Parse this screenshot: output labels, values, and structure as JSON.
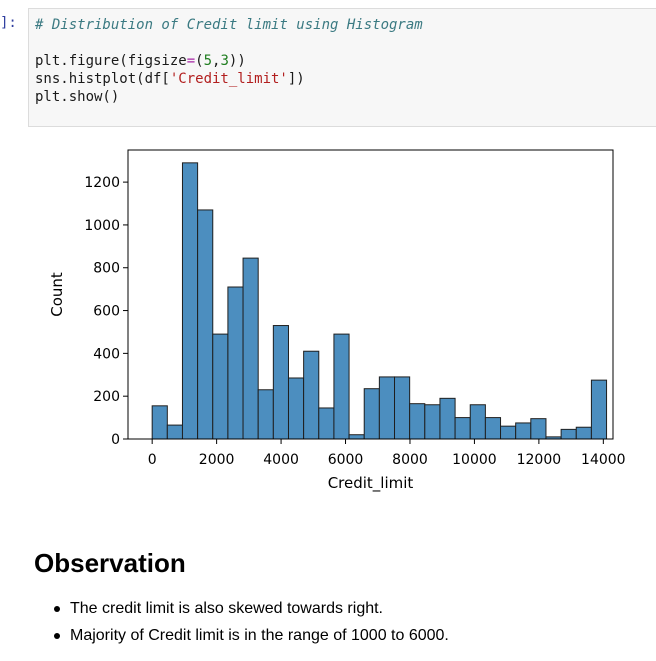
{
  "cell": {
    "prompt": "]:",
    "comment": "# Distribution of Credit limit using Histogram",
    "line1": {
      "pre": "plt.figure(figsize",
      "op": "=",
      "paren_open": "(",
      "num1": "5",
      "comma": ",",
      "num2": "3",
      "post": "))"
    },
    "line2": {
      "pre": "sns.histplot(df[",
      "str": "'Credit_limit'",
      "post": "])"
    },
    "line3": "plt.show()"
  },
  "chart_data": {
    "type": "bar",
    "title": "",
    "xlabel": "Credit_limit",
    "ylabel": "Count",
    "xlim": [
      -750,
      14300
    ],
    "ylim": [
      0,
      1350
    ],
    "x_ticks": [
      0,
      2000,
      4000,
      6000,
      8000,
      10000,
      12000,
      14000
    ],
    "x_tick_labels": [
      "0",
      "2000",
      "4000",
      "6000",
      "8000",
      "10000",
      "12000",
      "14000"
    ],
    "y_ticks": [
      0,
      200,
      400,
      600,
      800,
      1000,
      1200
    ],
    "y_tick_labels": [
      "0",
      "200",
      "400",
      "600",
      "800",
      "1000",
      "1200"
    ],
    "bin_start": 0,
    "bin_width": 470,
    "values": [
      155,
      65,
      1290,
      1070,
      490,
      710,
      845,
      230,
      530,
      285,
      410,
      145,
      490,
      20,
      235,
      290,
      290,
      165,
      160,
      190,
      100,
      160,
      100,
      60,
      75,
      95,
      10,
      45,
      55,
      275
    ],
    "bar_color": "#4c8ebf",
    "edge_color": "#1f1f1f",
    "grid": false,
    "legend": "none"
  },
  "observation": {
    "heading": "Observation",
    "bullets": [
      "The credit limit is also skewed towards right.",
      "Majority of Credit limit is in the range of 1000 to 6000."
    ]
  }
}
